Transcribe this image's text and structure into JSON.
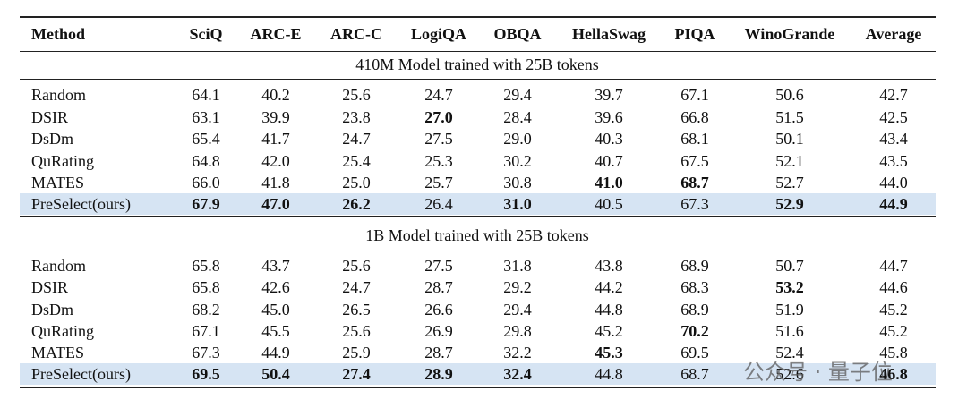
{
  "table": {
    "header": [
      "Method",
      "SciQ",
      "ARC-E",
      "ARC-C",
      "LogiQA",
      "OBQA",
      "HellaSwag",
      "PIQA",
      "WinoGrande",
      "Average"
    ],
    "sections": [
      {
        "title": "410M Model trained with 25B tokens",
        "rows": [
          {
            "cells": [
              "Random",
              "64.1",
              "40.2",
              "25.6",
              "24.7",
              "29.4",
              "39.7",
              "67.1",
              "50.6",
              "42.7"
            ],
            "bold": []
          },
          {
            "cells": [
              "DSIR",
              "63.1",
              "39.9",
              "23.8",
              "27.0",
              "28.4",
              "39.6",
              "66.8",
              "51.5",
              "42.5"
            ],
            "bold": [
              4
            ]
          },
          {
            "cells": [
              "DsDm",
              "65.4",
              "41.7",
              "24.7",
              "27.5",
              "29.0",
              "40.3",
              "68.1",
              "50.1",
              "43.4"
            ],
            "bold": []
          },
          {
            "cells": [
              "QuRating",
              "64.8",
              "42.0",
              "25.4",
              "25.3",
              "30.2",
              "40.7",
              "67.5",
              "52.1",
              "43.5"
            ],
            "bold": []
          },
          {
            "cells": [
              "MATES",
              "66.0",
              "41.8",
              "25.0",
              "25.7",
              "30.8",
              "41.0",
              "68.7",
              "52.7",
              "44.0"
            ],
            "bold": [
              6,
              7
            ]
          },
          {
            "cells": [
              "PreSelect(ours)",
              "67.9",
              "47.0",
              "26.2",
              "26.4",
              "31.0",
              "40.5",
              "67.3",
              "52.9",
              "44.9"
            ],
            "bold": [
              1,
              2,
              3,
              5,
              8,
              9
            ],
            "highlight": true
          }
        ]
      },
      {
        "title": "1B Model trained with 25B tokens",
        "rows": [
          {
            "cells": [
              "Random",
              "65.8",
              "43.7",
              "25.6",
              "27.5",
              "31.8",
              "43.8",
              "68.9",
              "50.7",
              "44.7"
            ],
            "bold": []
          },
          {
            "cells": [
              "DSIR",
              "65.8",
              "42.6",
              "24.7",
              "28.7",
              "29.2",
              "44.2",
              "68.3",
              "53.2",
              "44.6"
            ],
            "bold": [
              8
            ]
          },
          {
            "cells": [
              "DsDm",
              "68.2",
              "45.0",
              "26.5",
              "26.6",
              "29.4",
              "44.8",
              "68.9",
              "51.9",
              "45.2"
            ],
            "bold": []
          },
          {
            "cells": [
              "QuRating",
              "67.1",
              "45.5",
              "25.6",
              "26.9",
              "29.8",
              "45.2",
              "70.2",
              "51.6",
              "45.2"
            ],
            "bold": [
              7
            ]
          },
          {
            "cells": [
              "MATES",
              "67.3",
              "44.9",
              "25.9",
              "28.7",
              "32.2",
              "45.3",
              "69.5",
              "52.4",
              "45.8"
            ],
            "bold": [
              6
            ]
          },
          {
            "cells": [
              "PreSelect(ours)",
              "69.5",
              "50.4",
              "27.4",
              "28.9",
              "32.4",
              "44.8",
              "68.7",
              "52.6",
              "46.8"
            ],
            "bold": [
              1,
              2,
              3,
              4,
              5,
              9
            ],
            "highlight": true
          }
        ]
      }
    ],
    "watermark": "公众号 · 量子位"
  }
}
